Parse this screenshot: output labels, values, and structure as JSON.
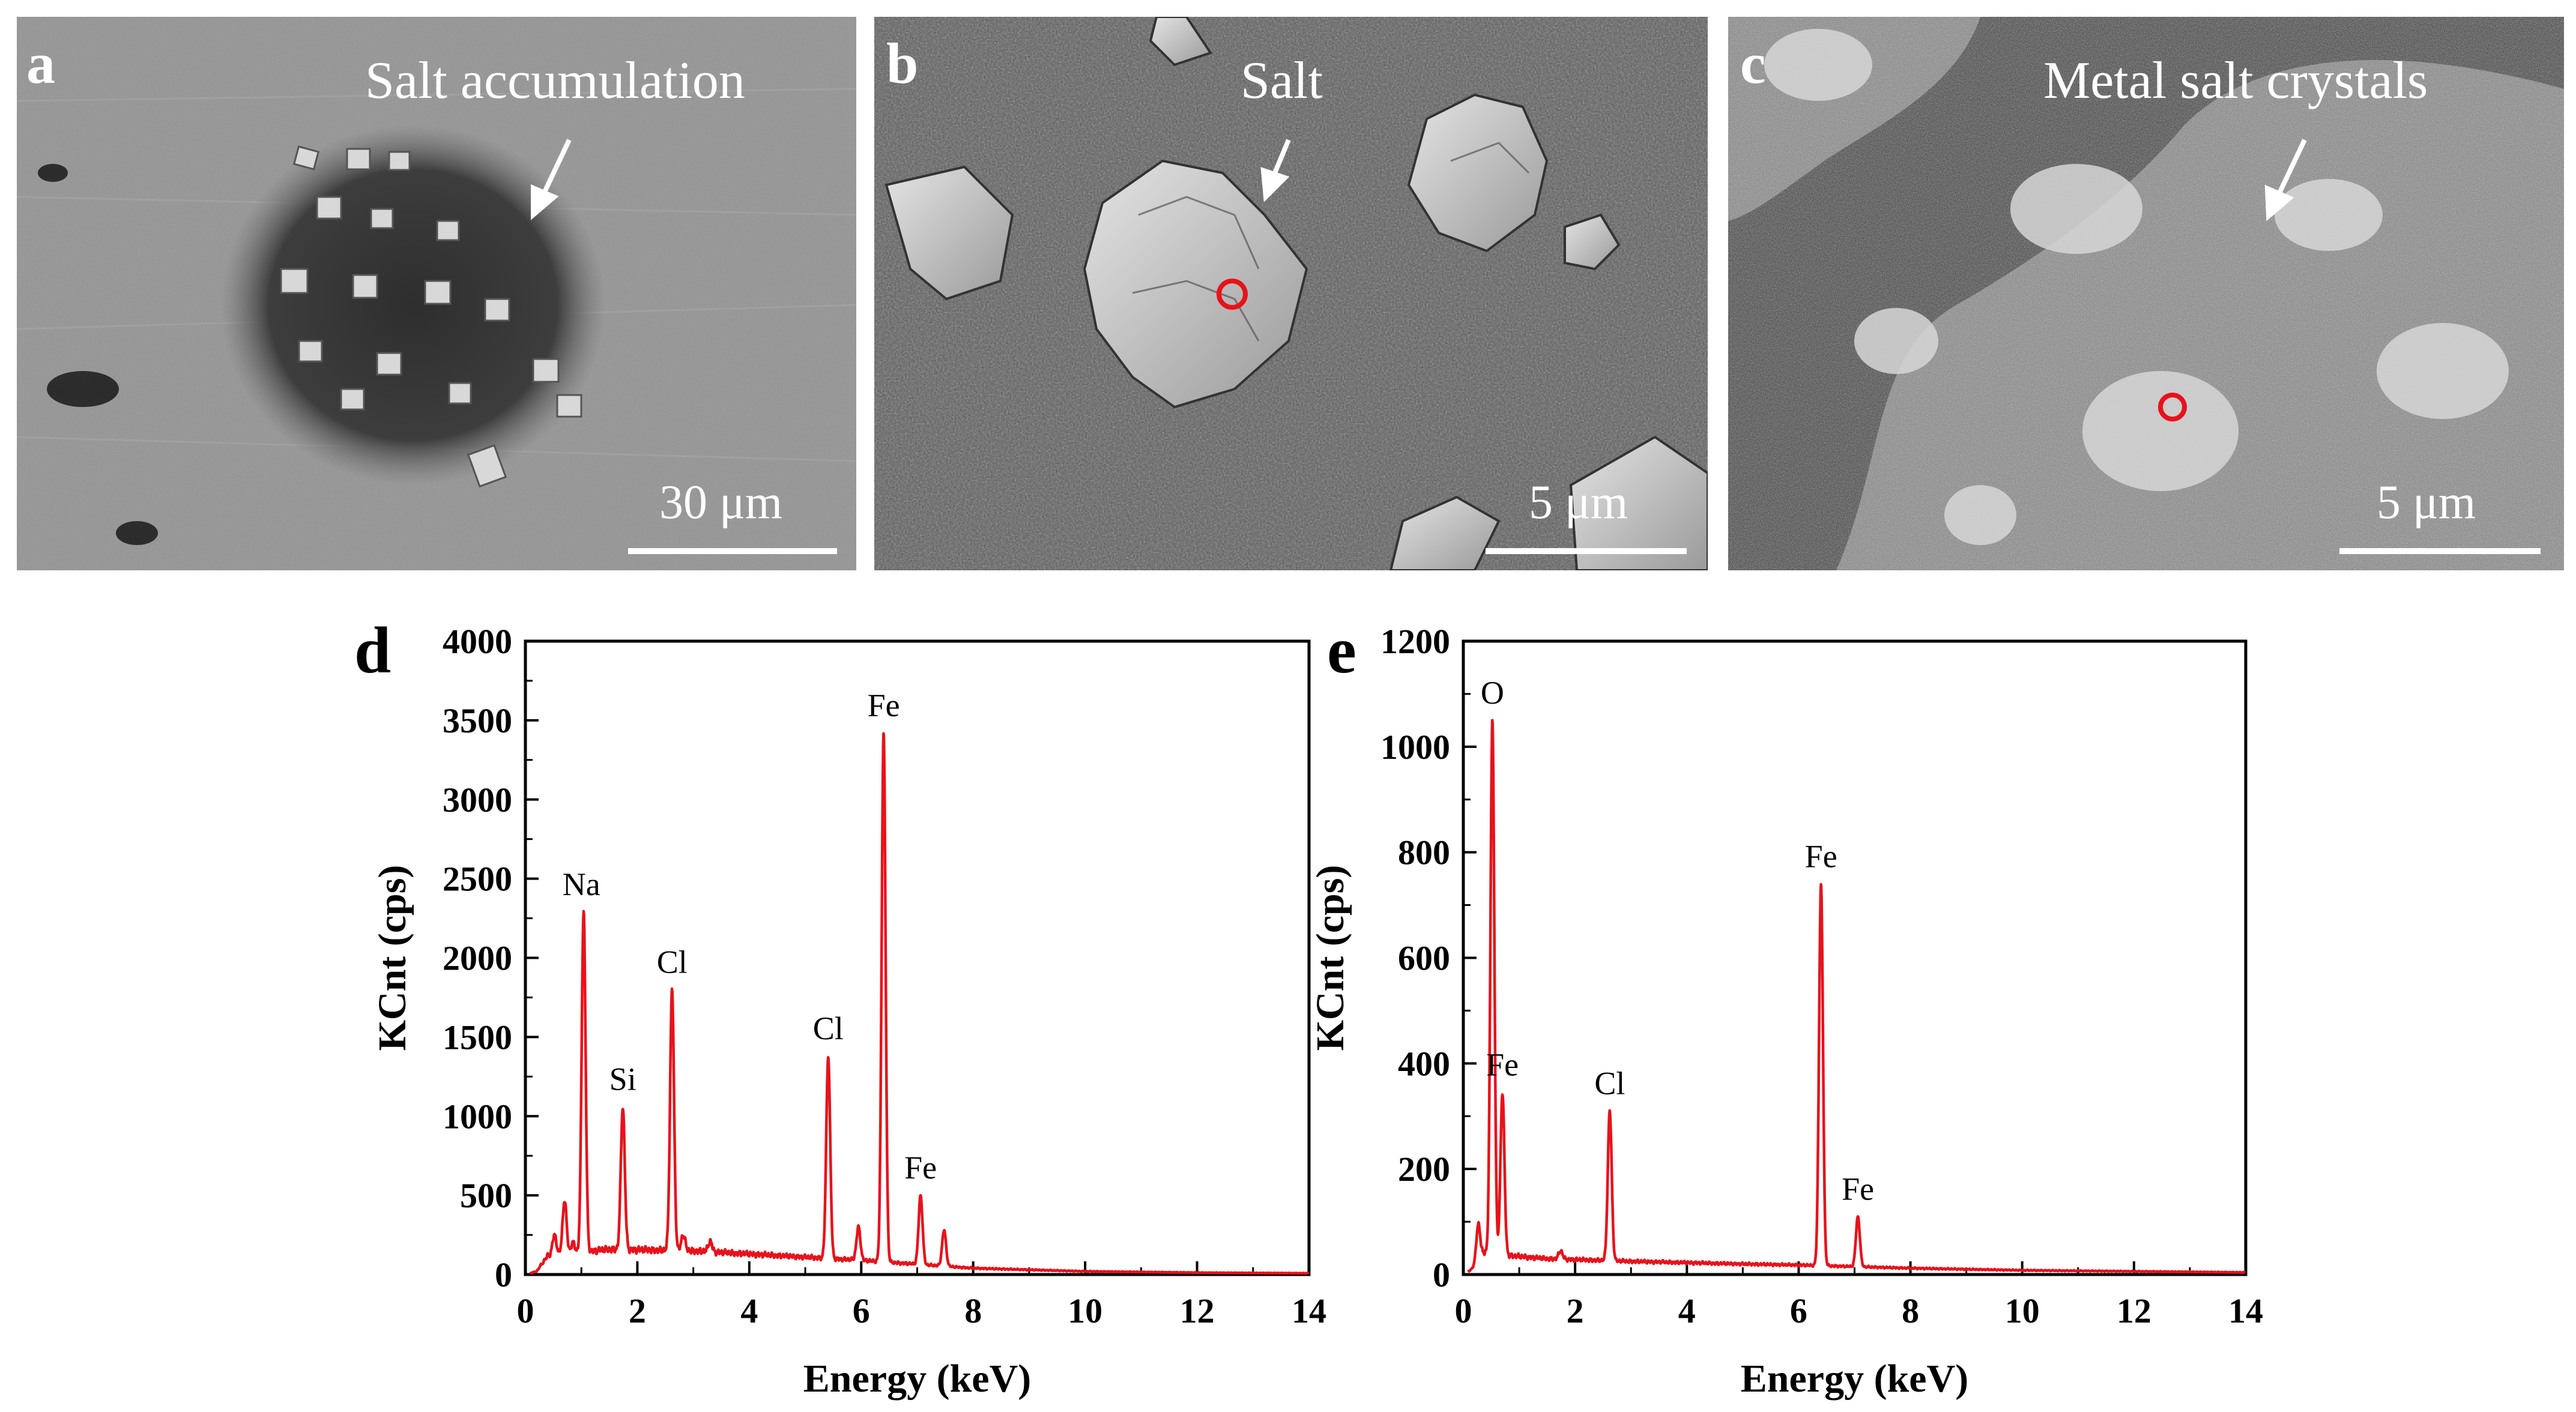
{
  "panels": {
    "a": {
      "letter": "a",
      "annotation": "Salt accumulation",
      "scale_bar": "30 μm"
    },
    "b": {
      "letter": "b",
      "annotation": "Salt",
      "scale_bar": "5 μm"
    },
    "c": {
      "letter": "c",
      "annotation": "Metal salt crystals",
      "scale_bar": "5 μm"
    }
  },
  "colors": {
    "spectrum": "#e8121b",
    "marker": "#e8121b",
    "axis": "#000000"
  },
  "chart_data": [
    {
      "panel": "d",
      "type": "line",
      "xlabel": "Energy (keV)",
      "ylabel": "KCnt (cps)",
      "xlim": [
        0,
        14
      ],
      "ylim": [
        0,
        4000
      ],
      "xticks": [
        0,
        2,
        4,
        6,
        8,
        10,
        12,
        14
      ],
      "yticks": [
        0,
        500,
        1000,
        1500,
        2000,
        2500,
        3000,
        3500,
        4000
      ],
      "baseline": [
        [
          0.2,
          20
        ],
        [
          0.4,
          120
        ],
        [
          1.5,
          160
        ],
        [
          3,
          150
        ],
        [
          5,
          110
        ],
        [
          6,
          90
        ],
        [
          8,
          40
        ],
        [
          10,
          20
        ],
        [
          12,
          12
        ],
        [
          14,
          8
        ]
      ],
      "peaks": [
        {
          "x": 0.52,
          "y": 250
        },
        {
          "x": 0.7,
          "y": 470
        },
        {
          "x": 0.85,
          "y": 200
        },
        {
          "x": 1.04,
          "y": 2290
        },
        {
          "x": 1.74,
          "y": 1060
        },
        {
          "x": 2.62,
          "y": 1800
        },
        {
          "x": 2.82,
          "y": 250
        },
        {
          "x": 3.3,
          "y": 210
        },
        {
          "x": 5.41,
          "y": 1380
        },
        {
          "x": 5.95,
          "y": 300
        },
        {
          "x": 6.4,
          "y": 3420
        },
        {
          "x": 7.06,
          "y": 500
        },
        {
          "x": 7.48,
          "y": 280
        }
      ],
      "annotations": [
        {
          "text": "Na",
          "x": 1.0,
          "y": 2290
        },
        {
          "text": "Si",
          "x": 1.74,
          "y": 1060
        },
        {
          "text": "Cl",
          "x": 2.62,
          "y": 1800
        },
        {
          "text": "Cl",
          "x": 5.41,
          "y": 1380
        },
        {
          "text": "Fe",
          "x": 6.4,
          "y": 3420
        },
        {
          "text": "Fe",
          "x": 7.06,
          "y": 500
        }
      ]
    },
    {
      "panel": "e",
      "type": "line",
      "xlabel": "Energy (keV)",
      "ylabel": "KCnt (cps)",
      "xlim": [
        0,
        14
      ],
      "ylim": [
        0,
        1200
      ],
      "xticks": [
        0,
        2,
        4,
        6,
        8,
        10,
        12,
        14
      ],
      "yticks": [
        0,
        200,
        400,
        600,
        800,
        1000,
        1200
      ],
      "baseline": [
        [
          0.15,
          10
        ],
        [
          0.35,
          40
        ],
        [
          1.5,
          30
        ],
        [
          3,
          25
        ],
        [
          5,
          20
        ],
        [
          6,
          18
        ],
        [
          8,
          12
        ],
        [
          10,
          8
        ],
        [
          12,
          6
        ],
        [
          14,
          4
        ]
      ],
      "peaks": [
        {
          "x": 0.27,
          "y": 95
        },
        {
          "x": 0.52,
          "y": 1050
        },
        {
          "x": 0.7,
          "y": 345
        },
        {
          "x": 1.74,
          "y": 45
        },
        {
          "x": 2.62,
          "y": 310
        },
        {
          "x": 6.4,
          "y": 740
        },
        {
          "x": 7.06,
          "y": 110
        }
      ],
      "annotations": [
        {
          "text": "O",
          "x": 0.52,
          "y": 1050
        },
        {
          "text": "Fe",
          "x": 0.7,
          "y": 345
        },
        {
          "text": "Cl",
          "x": 2.62,
          "y": 310
        },
        {
          "text": "Fe",
          "x": 6.4,
          "y": 740
        },
        {
          "text": "Fe",
          "x": 7.06,
          "y": 110
        }
      ]
    }
  ]
}
